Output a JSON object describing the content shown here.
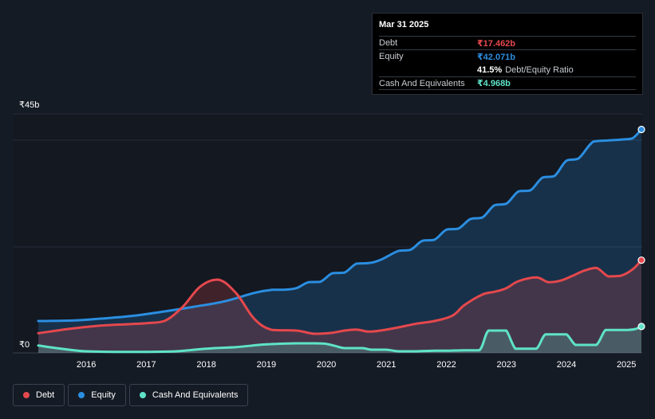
{
  "tooltip": {
    "date": "Mar 31 2025",
    "debt_label": "Debt",
    "debt_value": "₹17.462b",
    "equity_label": "Equity",
    "equity_value": "₹42.071b",
    "ratio_value": "41.5%",
    "ratio_label": "Debt/Equity Ratio",
    "cash_label": "Cash And Equivalents",
    "cash_value": "₹4.968b"
  },
  "legend": [
    {
      "label": "Debt",
      "color": "#e5484d"
    },
    {
      "label": "Equity",
      "color": "#2b8ee0"
    },
    {
      "label": "Cash And Equivalents",
      "color": "#5fe3c8"
    }
  ],
  "chart_data": {
    "type": "area",
    "title": "",
    "xlabel": "",
    "ylabel": "",
    "ylim": [
      0,
      45
    ],
    "xlim": [
      2015.2,
      2025.25
    ],
    "y_tick_labels": [
      {
        "value": 45,
        "label": "₹45b"
      },
      {
        "value": 0,
        "label": "₹0"
      }
    ],
    "x_ticks": [
      2016,
      2017,
      2018,
      2019,
      2020,
      2021,
      2022,
      2023,
      2024,
      2025
    ],
    "x_tick_labels": [
      "2016",
      "2017",
      "2018",
      "2019",
      "2020",
      "2021",
      "2022",
      "2023",
      "2024",
      "2025"
    ],
    "colors": {
      "debt": "#e5484d",
      "equity": "#2b8ee0",
      "cash": "#5fe3c8"
    },
    "series": [
      {
        "name": "Equity",
        "key": "equity",
        "x": [
          2015.2,
          2015.8,
          2016.3,
          2016.8,
          2017.3,
          2017.8,
          2018.3,
          2018.8,
          2019.1,
          2019.3,
          2019.5,
          2019.7,
          2019.9,
          2020.1,
          2020.3,
          2020.5,
          2020.7,
          2020.9,
          2021.2,
          2021.4,
          2021.6,
          2021.8,
          2022.0,
          2022.2,
          2022.4,
          2022.6,
          2022.8,
          2023.0,
          2023.2,
          2023.4,
          2023.6,
          2023.8,
          2024.0,
          2024.2,
          2024.45,
          2024.7,
          2024.95,
          2025.1,
          2025.25
        ],
        "values": [
          6.0,
          6.1,
          6.5,
          7.0,
          7.8,
          8.7,
          9.7,
          11.3,
          11.9,
          11.9,
          12.2,
          13.3,
          13.4,
          15.0,
          15.1,
          16.8,
          16.9,
          17.5,
          19.2,
          19.4,
          21.1,
          21.3,
          23.2,
          23.4,
          25.2,
          25.5,
          27.8,
          28.1,
          30.4,
          30.6,
          33.0,
          33.3,
          36.2,
          36.6,
          39.8,
          40.0,
          40.2,
          40.4,
          42.071
        ]
      },
      {
        "name": "Debt",
        "key": "debt",
        "x": [
          2015.2,
          2015.7,
          2016.2,
          2016.7,
          2017.0,
          2017.3,
          2017.6,
          2017.9,
          2018.2,
          2018.5,
          2018.8,
          2019.1,
          2019.5,
          2019.8,
          2020.1,
          2020.3,
          2020.5,
          2020.7,
          2020.9,
          2021.2,
          2021.5,
          2021.8,
          2022.1,
          2022.3,
          2022.6,
          2022.8,
          2023.0,
          2023.2,
          2023.5,
          2023.7,
          2023.9,
          2024.1,
          2024.3,
          2024.5,
          2024.7,
          2024.9,
          2025.1,
          2025.25
        ],
        "values": [
          3.7,
          4.5,
          5.1,
          5.4,
          5.6,
          6.0,
          8.6,
          12.5,
          13.8,
          11.2,
          6.4,
          4.3,
          4.2,
          3.6,
          3.8,
          4.2,
          4.4,
          4.0,
          4.2,
          4.8,
          5.5,
          6.0,
          7.0,
          9.0,
          11.0,
          11.5,
          12.2,
          13.5,
          14.2,
          13.3,
          13.6,
          14.5,
          15.5,
          16.0,
          14.4,
          14.5,
          15.7,
          17.462
        ]
      },
      {
        "name": "Cash And Equivalents",
        "key": "cash",
        "x": [
          2015.2,
          2015.5,
          2015.8,
          2016.0,
          2016.5,
          2017.0,
          2017.5,
          2018.0,
          2018.5,
          2019.0,
          2019.5,
          2019.8,
          2020.0,
          2020.15,
          2020.3,
          2020.6,
          2020.75,
          2021.0,
          2021.2,
          2021.5,
          2021.8,
          2022.0,
          2022.3,
          2022.55,
          2022.7,
          2022.9,
          2023.0,
          2023.15,
          2023.3,
          2023.5,
          2023.65,
          2023.85,
          2024.0,
          2024.15,
          2024.3,
          2024.5,
          2024.65,
          2024.8,
          2025.0,
          2025.15,
          2025.25
        ],
        "values": [
          1.4,
          0.9,
          0.5,
          0.3,
          0.2,
          0.2,
          0.3,
          0.8,
          1.1,
          1.6,
          1.8,
          1.8,
          1.7,
          1.3,
          0.9,
          0.9,
          0.6,
          0.6,
          0.3,
          0.3,
          0.4,
          0.4,
          0.5,
          0.5,
          4.2,
          4.2,
          4.2,
          0.8,
          0.8,
          0.8,
          3.5,
          3.5,
          3.5,
          1.5,
          1.5,
          1.5,
          4.3,
          4.3,
          4.3,
          4.5,
          4.968
        ]
      }
    ]
  }
}
